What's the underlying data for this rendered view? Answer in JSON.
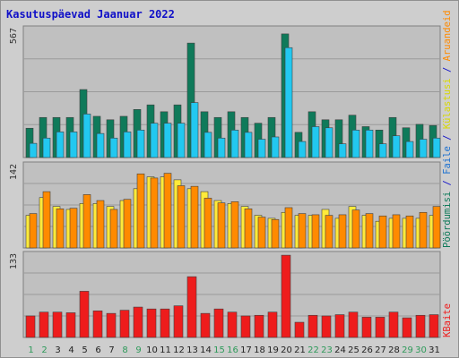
{
  "title": "Kasutuspäevad Jaanuar 2022",
  "colors": {
    "background": "#cecece",
    "panel": "#c0c0c0",
    "grid": "#9a9a9a",
    "weekday_label": "#1b6b38",
    "weekend_label": "#2e9a5a",
    "title": "#1010c8",
    "pageviews": "#0f7a5a",
    "files": "#22c8f0",
    "visits": "#ff8a00",
    "sites": "#ffea3a",
    "kbytes": "#ee1c1c"
  },
  "chart_data": [
    {
      "type": "bar",
      "panel": "top",
      "y_axis_max_label": "567",
      "ylim": [
        0,
        567
      ],
      "x": [
        "1",
        "2",
        "3",
        "4",
        "5",
        "6",
        "7",
        "8",
        "9",
        "10",
        "11",
        "12",
        "13",
        "14",
        "15",
        "16",
        "17",
        "18",
        "19",
        "20",
        "21",
        "22",
        "23",
        "24",
        "25",
        "26",
        "27",
        "28",
        "29",
        "30",
        "31"
      ],
      "weekend_days": [
        "1",
        "2",
        "8",
        "9",
        "15",
        "16",
        "22",
        "23",
        "29",
        "30"
      ],
      "series": [
        {
          "name": "Pöördumisi",
          "color": "#0f7a5a",
          "values": [
            128,
            175,
            175,
            175,
            297,
            180,
            165,
            180,
            210,
            230,
            200,
            230,
            500,
            200,
            175,
            200,
            175,
            150,
            175,
            540,
            110,
            200,
            165,
            165,
            185,
            135,
            120,
            175,
            130,
            145,
            140
          ]
        },
        {
          "name": "Faile",
          "color": "#22c8f0",
          "values": [
            62,
            85,
            112,
            112,
            190,
            105,
            85,
            112,
            120,
            150,
            150,
            150,
            240,
            110,
            85,
            120,
            110,
            80,
            90,
            480,
            70,
            135,
            130,
            60,
            120,
            120,
            60,
            95,
            70,
            80,
            85
          ]
        }
      ]
    },
    {
      "type": "bar",
      "panel": "middle",
      "y_axis_max_label": "142",
      "ylim": [
        0,
        142
      ],
      "x": [
        "1",
        "2",
        "3",
        "4",
        "5",
        "6",
        "7",
        "8",
        "9",
        "10",
        "11",
        "12",
        "13",
        "14",
        "15",
        "16",
        "17",
        "18",
        "19",
        "20",
        "21",
        "22",
        "23",
        "24",
        "25",
        "26",
        "27",
        "28",
        "29",
        "30",
        "31"
      ],
      "series": [
        {
          "name": "Külastusi",
          "color": "#ffea3a",
          "values": [
            55,
            85,
            70,
            65,
            75,
            75,
            70,
            80,
            100,
            120,
            120,
            115,
            100,
            95,
            80,
            75,
            70,
            55,
            50,
            60,
            55,
            55,
            65,
            50,
            70,
            55,
            45,
            50,
            50,
            50,
            55
          ]
        },
        {
          "name": "Aruandeid",
          "color": "#ff8a00",
          "values": [
            58,
            95,
            66,
            67,
            90,
            80,
            65,
            82,
            125,
            118,
            126,
            105,
            104,
            84,
            76,
            78,
            66,
            52,
            48,
            68,
            58,
            56,
            55,
            56,
            64,
            58,
            54,
            56,
            54,
            60,
            70
          ]
        }
      ]
    },
    {
      "type": "bar",
      "panel": "bottom",
      "y_axis_max_label": "133",
      "ylim": [
        0,
        133
      ],
      "x": [
        "1",
        "2",
        "3",
        "4",
        "5",
        "6",
        "7",
        "8",
        "9",
        "10",
        "11",
        "12",
        "13",
        "14",
        "15",
        "16",
        "17",
        "18",
        "19",
        "20",
        "21",
        "22",
        "23",
        "24",
        "25",
        "26",
        "27",
        "28",
        "29",
        "30",
        "31"
      ],
      "series": [
        {
          "name": "KBaite",
          "color": "#ee1c1c",
          "values": [
            34,
            40,
            40,
            39,
            73,
            42,
            38,
            43,
            48,
            45,
            45,
            50,
            96,
            38,
            45,
            40,
            34,
            35,
            40,
            130,
            24,
            35,
            34,
            36,
            40,
            32,
            32,
            40,
            31,
            35,
            36
          ]
        }
      ]
    }
  ],
  "right_legend": {
    "top": [
      {
        "text": "Pöördumisi",
        "color": "#0f7a5a"
      },
      {
        "text": " / ",
        "color": "#1010c8"
      },
      {
        "text": "Faile",
        "color": "#1a70d0"
      },
      {
        "text": " / ",
        "color": "#1010c8"
      },
      {
        "text": "Külastusi",
        "color": "#d8d800"
      },
      {
        "text": " / ",
        "color": "#1010c8"
      },
      {
        "text": "Aruandeid",
        "color": "#ff8a00"
      }
    ],
    "bottom": [
      {
        "text": "KBaite",
        "color": "#ee1c1c"
      }
    ]
  }
}
